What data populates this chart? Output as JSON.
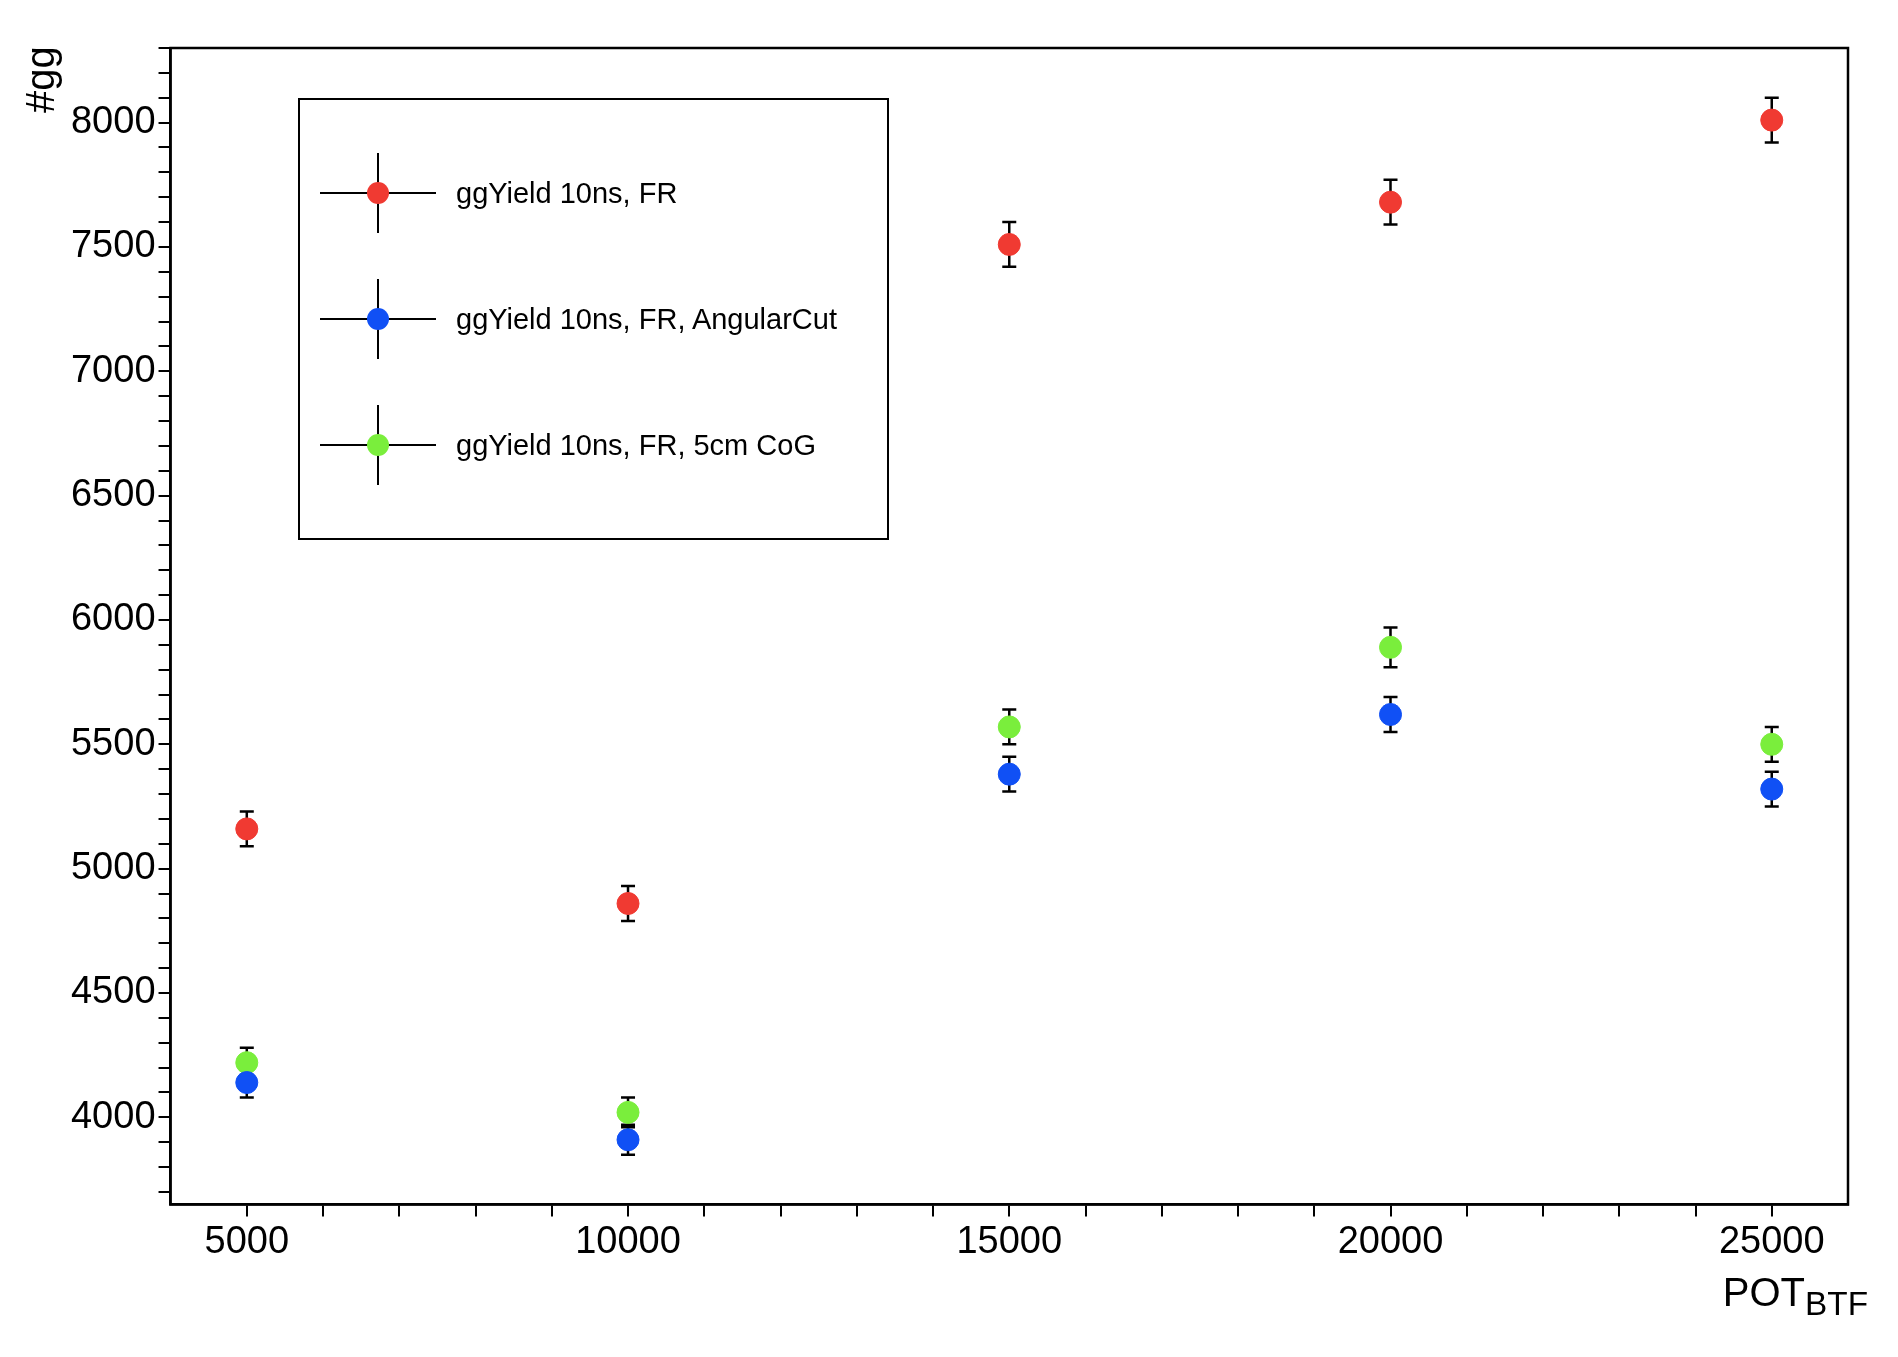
{
  "chart_data": {
    "type": "scatter",
    "xlabel": "POT$_{BTF}$",
    "ylabel": "#gg",
    "x": [
      5000,
      10000,
      15000,
      20000,
      25000
    ],
    "xlim": [
      4000,
      26000
    ],
    "ylim": [
      3650,
      8300
    ],
    "xticks": [
      5000,
      {
        "value": 6000,
        "label": null
      },
      {
        "value": 7000,
        "label": null
      },
      {
        "value": 8000,
        "label": null
      },
      {
        "value": 9000,
        "label": null
      },
      10000,
      {
        "value": 11000,
        "label": null
      },
      {
        "value": 12000,
        "label": null
      },
      {
        "value": 13000,
        "label": null
      },
      {
        "value": 14000,
        "label": null
      },
      15000,
      {
        "value": 16000,
        "label": null
      },
      {
        "value": 17000,
        "label": null
      },
      {
        "value": 18000,
        "label": null
      },
      {
        "value": 19000,
        "label": null
      },
      20000,
      {
        "value": 21000,
        "label": null
      },
      {
        "value": 22000,
        "label": null
      },
      {
        "value": 23000,
        "label": null
      },
      {
        "value": 24000,
        "label": null
      },
      25000
    ],
    "yticks": [
      {
        "value": 3700,
        "label": null
      },
      {
        "value": 3800,
        "label": null
      },
      {
        "value": 3900,
        "label": null
      },
      4000,
      {
        "value": 4100,
        "label": null
      },
      {
        "value": 4200,
        "label": null
      },
      {
        "value": 4300,
        "label": null
      },
      {
        "value": 4400,
        "label": null
      },
      4500,
      {
        "value": 4600,
        "label": null
      },
      {
        "value": 4700,
        "label": null
      },
      {
        "value": 4800,
        "label": null
      },
      {
        "value": 4900,
        "label": null
      },
      5000,
      {
        "value": 5100,
        "label": null
      },
      {
        "value": 5200,
        "label": null
      },
      {
        "value": 5300,
        "label": null
      },
      {
        "value": 5400,
        "label": null
      },
      5500,
      {
        "value": 5600,
        "label": null
      },
      {
        "value": 5700,
        "label": null
      },
      {
        "value": 5800,
        "label": null
      },
      {
        "value": 5900,
        "label": null
      },
      6000,
      {
        "value": 6100,
        "label": null
      },
      {
        "value": 6200,
        "label": null
      },
      {
        "value": 6300,
        "label": null
      },
      {
        "value": 6400,
        "label": null
      },
      6500,
      {
        "value": 6600,
        "label": null
      },
      {
        "value": 6700,
        "label": null
      },
      {
        "value": 6800,
        "label": null
      },
      {
        "value": 6900,
        "label": null
      },
      7000,
      {
        "value": 7100,
        "label": null
      },
      {
        "value": 7200,
        "label": null
      },
      {
        "value": 7300,
        "label": null
      },
      {
        "value": 7400,
        "label": null
      },
      7500,
      {
        "value": 7600,
        "label": null
      },
      {
        "value": 7700,
        "label": null
      },
      {
        "value": 7800,
        "label": null
      },
      {
        "value": 7900,
        "label": null
      },
      8000,
      {
        "value": 8100,
        "label": null
      },
      {
        "value": 8200,
        "label": null
      },
      {
        "value": 8300,
        "label": null
      }
    ],
    "series": [
      {
        "name": "ggYield 10ns, FR",
        "color": "#f03a32",
        "values": [
          5160,
          4860,
          7510,
          7680,
          8010
        ],
        "errors": [
          70,
          70,
          90,
          90,
          90
        ]
      },
      {
        "name": "ggYield 10ns, FR, AngularCut",
        "color": "#1050f5",
        "values": [
          4140,
          3910,
          5380,
          5620,
          5320
        ],
        "errors": [
          60,
          60,
          70,
          70,
          70
        ]
      },
      {
        "name": "ggYield 10ns, FR, 5cm CoG",
        "color": "#7aee3c",
        "values": [
          4220,
          4020,
          5570,
          5890,
          5500
        ],
        "errors": [
          60,
          60,
          70,
          80,
          70
        ]
      }
    ],
    "marker": "circle",
    "legend": "top left",
    "grid": false
  }
}
